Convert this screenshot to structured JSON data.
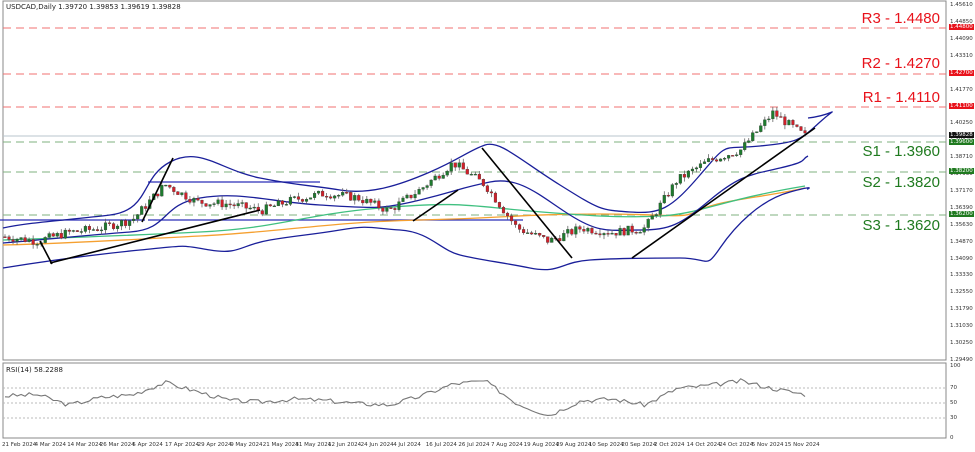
{
  "header": {
    "symbol_line": "USDCAD,Daily  1.39720 1.39853 1.39619 1.39828"
  },
  "rsi_header": "RSI(14) 58.2288",
  "levels": [
    {
      "name": "R3",
      "label": "R3 - 1.4480",
      "price": 1.448,
      "color": "#e8121b",
      "tag": "1.44800"
    },
    {
      "name": "R2",
      "label": "R2 - 1.4270",
      "price": 1.427,
      "color": "#e8121b",
      "tag": "1.42700"
    },
    {
      "name": "R1",
      "label": "R1 - 1.4110",
      "price": 1.411,
      "color": "#e8121b",
      "tag": "1.41100"
    },
    {
      "name": "S1",
      "label": "S1 - 1.3960",
      "price": 1.396,
      "color": "#1f7a1f",
      "tag": "1.39600"
    },
    {
      "name": "S2",
      "label": "S2 - 1.3820",
      "price": 1.382,
      "color": "#1f7a1f",
      "tag": "1.38200"
    },
    {
      "name": "S3",
      "label": "S3 - 1.3620",
      "price": 1.362,
      "color": "#1f7a1f",
      "tag": "1.36200"
    }
  ],
  "current_price_tag": "1.39828",
  "price_axis": [
    "1.45610",
    "1.44850",
    "1.44090",
    "1.43310",
    "1.42550",
    "1.41770",
    "1.41010",
    "1.40250",
    "1.39470",
    "1.38710",
    "1.37930",
    "1.37170",
    "1.36390",
    "1.35630",
    "1.34870",
    "1.34090",
    "1.33330",
    "1.32550",
    "1.31790",
    "1.31030",
    "1.30250",
    "1.29490"
  ],
  "rsi_axis": [
    "100",
    "70",
    "50",
    "30",
    "0"
  ],
  "date_axis": [
    "21 Feb 2024",
    "4 Mar 2024",
    "14 Mar 2024",
    "26 Mar 2024",
    "5 Apr 2024",
    "17 Apr 2024",
    "29 Apr 2024",
    "9 May 2024",
    "21 May 2024",
    "31 May 2024",
    "12 Jun 2024",
    "24 Jun 2024",
    "4 Jul 2024",
    "16 Jul 2024",
    "26 Jul 2024",
    "7 Aug 2024",
    "19 Aug 2024",
    "29 Aug 2024",
    "10 Sep 2024",
    "20 Sep 2024",
    "2 Oct 2024",
    "14 Oct 2024",
    "24 Oct 2024",
    "5 Nov 2024",
    "15 Nov 2024"
  ],
  "chart_data": [
    {
      "type": "line",
      "title": "USDCAD, Daily",
      "subtitle": "O 1.39720 H 1.39853 L 1.39619 C 1.39828",
      "xlabel": "",
      "ylabel": "",
      "x": [
        "21 Feb 2024",
        "4 Mar 2024",
        "14 Mar 2024",
        "26 Mar 2024",
        "5 Apr 2024",
        "17 Apr 2024",
        "29 Apr 2024",
        "9 May 2024",
        "21 May 2024",
        "31 May 2024",
        "12 Jun 2024",
        "24 Jun 2024",
        "4 Jul 2024",
        "16 Jul 2024",
        "26 Jul 2024",
        "7 Aug 2024",
        "19 Aug 2024",
        "29 Aug 2024",
        "10 Sep 2024",
        "20 Sep 2024",
        "2 Oct 2024",
        "14 Oct 2024",
        "24 Oct 2024",
        "5 Nov 2024",
        "15 Nov 2024",
        "21 Nov 2024"
      ],
      "series": [
        {
          "name": "USDCAD close (approx)",
          "values": [
            1.352,
            1.35,
            1.354,
            1.356,
            1.36,
            1.376,
            1.368,
            1.367,
            1.364,
            1.369,
            1.372,
            1.37,
            1.364,
            1.374,
            1.386,
            1.376,
            1.356,
            1.35,
            1.356,
            1.354,
            1.356,
            1.378,
            1.387,
            1.392,
            1.409,
            1.3983
          ]
        }
      ],
      "horizontal_levels": {
        "R3": 1.448,
        "R2": 1.427,
        "R1": 1.411,
        "S1": 1.396,
        "S2": 1.382,
        "S3": 1.362
      },
      "indicators": [
        "Bollinger Bands",
        "Moving average (green)",
        "Moving average (orange)",
        "Trendlines (black)"
      ],
      "ylim": [
        1.2949,
        1.4561
      ],
      "grid": false,
      "legend_position": "none"
    },
    {
      "type": "line",
      "title": "RSI(14) 58.2288",
      "x": [
        "21 Feb 2024",
        "4 Mar 2024",
        "14 Mar 2024",
        "26 Mar 2024",
        "5 Apr 2024",
        "17 Apr 2024",
        "29 Apr 2024",
        "9 May 2024",
        "21 May 2024",
        "31 May 2024",
        "12 Jun 2024",
        "24 Jun 2024",
        "4 Jul 2024",
        "16 Jul 2024",
        "26 Jul 2024",
        "7 Aug 2024",
        "19 Aug 2024",
        "29 Aug 2024",
        "10 Sep 2024",
        "20 Sep 2024",
        "2 Oct 2024",
        "14 Oct 2024",
        "24 Oct 2024",
        "5 Nov 2024",
        "15 Nov 2024",
        "21 Nov 2024"
      ],
      "series": [
        {
          "name": "RSI(14)",
          "values": [
            56,
            58,
            44,
            54,
            58,
            74,
            62,
            50,
            48,
            52,
            50,
            46,
            44,
            56,
            72,
            76,
            46,
            30,
            50,
            52,
            44,
            66,
            70,
            76,
            66,
            58
          ]
        }
      ],
      "reference_lines": [
        70,
        50,
        30
      ],
      "ylim": [
        0,
        100
      ]
    }
  ]
}
